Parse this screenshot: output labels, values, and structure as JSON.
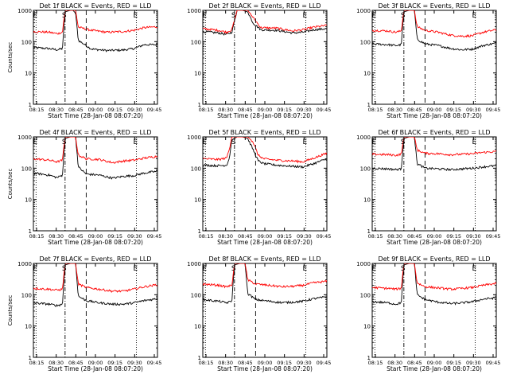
{
  "colors": {
    "events": "#000000",
    "lld": "#ff0000",
    "axes": "#000000",
    "background": "#ffffff"
  },
  "chart_data": [
    {
      "type": "line",
      "title": "Det 1f BLACK = Events, RED = LLD",
      "xlabel": "Start Time (28-Jan-08 08:07:20)",
      "ylabel": "Counts/sec",
      "x_tick_labels": [
        "08:15",
        "08:30",
        "08:45",
        "09:00",
        "09:15",
        "09:30",
        "09:45"
      ],
      "x_range_min": [
        8,
        55
      ],
      "y_log": true,
      "ylim": [
        1,
        1000
      ],
      "y_tick_labels": [
        "1",
        "10",
        "100",
        "1000"
      ],
      "markers": [
        {
          "label": "E",
          "style": "dotted",
          "x_min": 9
        },
        {
          "label": "S",
          "style": "dash-dot",
          "x_min": 20
        },
        {
          "label": "",
          "style": "dashed",
          "x_min": 28
        },
        {
          "label": "E",
          "style": "dotted",
          "x_min": 47
        }
      ],
      "series": [
        {
          "role": "events",
          "anchors_x_min": [
            8,
            14,
            17,
            19,
            20,
            22,
            23,
            24,
            25,
            30,
            36,
            42,
            46,
            50,
            55
          ],
          "anchors_y": [
            65,
            60,
            55,
            60,
            900,
            1000,
            1000,
            800,
            110,
            58,
            52,
            54,
            60,
            80,
            80
          ]
        },
        {
          "role": "lld",
          "anchors_x_min": [
            8,
            14,
            17,
            19,
            20,
            22,
            23,
            24,
            25,
            30,
            36,
            42,
            46,
            50,
            55
          ],
          "anchors_y": [
            210,
            200,
            180,
            200,
            1000,
            1000,
            1000,
            1000,
            290,
            230,
            200,
            210,
            230,
            280,
            300
          ]
        }
      ]
    },
    {
      "type": "line",
      "title": "Det 2f BLACK = Events, RED = LLD",
      "xlabel": "Start Time (28-Jan-08 08:07:20)",
      "ylabel": "",
      "x_tick_labels": [
        "08:15",
        "08:30",
        "08:45",
        "09:00",
        "09:15",
        "09:30",
        "09:45"
      ],
      "x_range_min": [
        8,
        55
      ],
      "y_log": true,
      "ylim": [
        1,
        1000
      ],
      "y_tick_labels": [
        "1",
        "10",
        "100",
        "1000"
      ],
      "markers": [
        {
          "label": "E",
          "style": "dotted",
          "x_min": 9
        },
        {
          "label": "S",
          "style": "dash-dot",
          "x_min": 20
        },
        {
          "label": "",
          "style": "dashed",
          "x_min": 28
        },
        {
          "label": "E",
          "style": "dotted",
          "x_min": 47
        }
      ],
      "series": [
        {
          "role": "events",
          "anchors_x_min": [
            8,
            14,
            17,
            19,
            21,
            23,
            25,
            27,
            30,
            36,
            42,
            46,
            50,
            55
          ],
          "anchors_y": [
            210,
            190,
            170,
            200,
            1000,
            1000,
            900,
            400,
            240,
            230,
            190,
            200,
            240,
            260
          ]
        },
        {
          "role": "lld",
          "anchors_x_min": [
            8,
            14,
            17,
            19,
            21,
            23,
            25,
            27,
            30,
            36,
            42,
            46,
            50,
            55
          ],
          "anchors_y": [
            260,
            230,
            200,
            240,
            1000,
            1000,
            1000,
            600,
            280,
            270,
            220,
            240,
            290,
            330
          ]
        }
      ]
    },
    {
      "type": "line",
      "title": "Det 3f BLACK = Events, RED = LLD",
      "xlabel": "Start Time (28-Jan-08 08:07:20)",
      "ylabel": "",
      "x_tick_labels": [
        "08:15",
        "08:30",
        "08:45",
        "09:00",
        "09:15",
        "09:30",
        "09:45"
      ],
      "x_range_min": [
        8,
        55
      ],
      "y_log": true,
      "ylim": [
        1,
        1000
      ],
      "y_tick_labels": [
        "1",
        "10",
        "100",
        "1000"
      ],
      "markers": [
        {
          "label": "E",
          "style": "dotted",
          "x_min": 9
        },
        {
          "label": "S",
          "style": "dash-dot",
          "x_min": 20
        },
        {
          "label": "",
          "style": "dashed",
          "x_min": 28
        },
        {
          "label": "E",
          "style": "dotted",
          "x_min": 47
        }
      ],
      "series": [
        {
          "role": "events",
          "anchors_x_min": [
            8,
            14,
            17,
            19,
            20,
            22,
            24,
            25,
            28,
            33,
            38,
            42,
            46,
            50,
            55
          ],
          "anchors_y": [
            85,
            80,
            75,
            80,
            900,
            1000,
            1000,
            120,
            85,
            75,
            60,
            55,
            58,
            75,
            90
          ]
        },
        {
          "role": "lld",
          "anchors_x_min": [
            8,
            14,
            17,
            19,
            20,
            22,
            24,
            25,
            28,
            33,
            38,
            42,
            46,
            50,
            55
          ],
          "anchors_y": [
            230,
            220,
            200,
            220,
            1000,
            1000,
            1000,
            300,
            230,
            200,
            160,
            150,
            155,
            200,
            240
          ]
        }
      ]
    },
    {
      "type": "line",
      "title": "Det 4f BLACK = Events, RED = LLD",
      "xlabel": "Start Time (28-Jan-08 08:07:20)",
      "ylabel": "Counts/sec",
      "x_tick_labels": [
        "08:15",
        "08:30",
        "08:45",
        "09:00",
        "09:15",
        "09:30",
        "09:45"
      ],
      "x_range_min": [
        8,
        55
      ],
      "y_log": true,
      "ylim": [
        1,
        1000
      ],
      "y_tick_labels": [
        "1",
        "10",
        "100",
        "1000"
      ],
      "markers": [
        {
          "label": "E",
          "style": "dotted",
          "x_min": 9
        },
        {
          "label": "S",
          "style": "dash-dot",
          "x_min": 20
        },
        {
          "label": "",
          "style": "dashed",
          "x_min": 28
        },
        {
          "label": "E",
          "style": "dotted",
          "x_min": 47
        }
      ],
      "series": [
        {
          "role": "events",
          "anchors_x_min": [
            8,
            14,
            17,
            19,
            20,
            22,
            24,
            25,
            28,
            33,
            38,
            42,
            46,
            50,
            55
          ],
          "anchors_y": [
            70,
            60,
            50,
            60,
            900,
            1000,
            1000,
            110,
            65,
            60,
            48,
            55,
            58,
            70,
            80
          ]
        },
        {
          "role": "lld",
          "anchors_x_min": [
            8,
            14,
            17,
            19,
            20,
            22,
            24,
            25,
            28,
            33,
            38,
            42,
            46,
            50,
            55
          ],
          "anchors_y": [
            200,
            180,
            160,
            180,
            1000,
            1000,
            1000,
            260,
            200,
            190,
            150,
            170,
            180,
            210,
            240
          ]
        }
      ]
    },
    {
      "type": "line",
      "title": "Det 5f BLACK = Events, RED = LLD",
      "xlabel": "Start Time (28-Jan-08 08:07:20)",
      "ylabel": "",
      "x_tick_labels": [
        "08:15",
        "08:30",
        "08:45",
        "09:00",
        "09:15",
        "09:30",
        "09:45"
      ],
      "x_range_min": [
        8,
        55
      ],
      "y_log": true,
      "ylim": [
        1,
        1000
      ],
      "y_tick_labels": [
        "1",
        "10",
        "100",
        "1000"
      ],
      "markers": [
        {
          "label": "E",
          "style": "dotted",
          "x_min": 9
        },
        {
          "label": "S",
          "style": "dash-dot",
          "x_min": 20
        },
        {
          "label": "",
          "style": "dashed",
          "x_min": 28
        },
        {
          "label": "E",
          "style": "dotted",
          "x_min": 47
        }
      ],
      "series": [
        {
          "role": "events",
          "anchors_x_min": [
            8,
            14,
            17,
            18,
            19,
            21,
            23,
            25,
            27,
            29,
            31,
            36,
            42,
            46,
            50,
            55
          ],
          "anchors_y": [
            125,
            120,
            125,
            200,
            800,
            1000,
            1000,
            900,
            400,
            170,
            140,
            125,
            115,
            110,
            140,
            200
          ]
        },
        {
          "role": "lld",
          "anchors_x_min": [
            8,
            14,
            17,
            18,
            19,
            21,
            23,
            25,
            27,
            29,
            31,
            36,
            42,
            46,
            50,
            55
          ],
          "anchors_y": [
            200,
            190,
            210,
            400,
            1000,
            1000,
            1000,
            1000,
            700,
            260,
            200,
            180,
            170,
            160,
            210,
            300
          ]
        }
      ]
    },
    {
      "type": "line",
      "title": "Det 6f BLACK = Events, RED = LLD",
      "xlabel": "Start Time (28-Jan-08 08:07:20)",
      "ylabel": "",
      "x_tick_labels": [
        "08:15",
        "08:30",
        "08:45",
        "09:00",
        "09:15",
        "09:30",
        "09:45"
      ],
      "x_range_min": [
        8,
        55
      ],
      "y_log": true,
      "ylim": [
        1,
        1000
      ],
      "y_tick_labels": [
        "1",
        "10",
        "100",
        "1000"
      ],
      "markers": [
        {
          "label": "E",
          "style": "dotted",
          "x_min": 9
        },
        {
          "label": "S",
          "style": "dash-dot",
          "x_min": 20
        },
        {
          "label": "",
          "style": "dashed",
          "x_min": 28
        },
        {
          "label": "E",
          "style": "dotted",
          "x_min": 47
        }
      ],
      "series": [
        {
          "role": "events",
          "anchors_x_min": [
            8,
            14,
            17,
            19,
            20,
            22,
            24,
            25,
            28,
            33,
            38,
            42,
            46,
            50,
            55
          ],
          "anchors_y": [
            100,
            95,
            90,
            95,
            900,
            1000,
            1000,
            140,
            100,
            95,
            90,
            95,
            100,
            110,
            120
          ]
        },
        {
          "role": "lld",
          "anchors_x_min": [
            8,
            14,
            17,
            19,
            20,
            22,
            24,
            25,
            28,
            33,
            38,
            42,
            46,
            50,
            55
          ],
          "anchors_y": [
            280,
            270,
            260,
            280,
            1000,
            1000,
            1000,
            380,
            300,
            290,
            270,
            280,
            290,
            320,
            340
          ]
        }
      ]
    },
    {
      "type": "line",
      "title": "Det 7f BLACK = Events, RED = LLD",
      "xlabel": "Start Time (28-Jan-08 08:07:20)",
      "ylabel": "Counts/sec",
      "x_tick_labels": [
        "08:15",
        "08:30",
        "08:45",
        "09:00",
        "09:15",
        "09:30",
        "09:45"
      ],
      "x_range_min": [
        8,
        55
      ],
      "y_log": true,
      "ylim": [
        1,
        1000
      ],
      "y_tick_labels": [
        "1",
        "10",
        "100",
        "1000"
      ],
      "markers": [
        {
          "label": "E",
          "style": "dotted",
          "x_min": 9
        },
        {
          "label": "S",
          "style": "dash-dot",
          "x_min": 20
        },
        {
          "label": "",
          "style": "dashed",
          "x_min": 28
        },
        {
          "label": "E",
          "style": "dotted",
          "x_min": 47
        }
      ],
      "series": [
        {
          "role": "events",
          "anchors_x_min": [
            8,
            14,
            17,
            19,
            20,
            22,
            24,
            25,
            28,
            33,
            38,
            42,
            46,
            50,
            55
          ],
          "anchors_y": [
            55,
            50,
            45,
            50,
            900,
            1000,
            1000,
            90,
            65,
            55,
            50,
            50,
            55,
            65,
            75
          ]
        },
        {
          "role": "lld",
          "anchors_x_min": [
            8,
            14,
            17,
            19,
            20,
            22,
            24,
            25,
            28,
            33,
            38,
            42,
            46,
            50,
            55
          ],
          "anchors_y": [
            160,
            150,
            140,
            150,
            1000,
            1000,
            1000,
            220,
            170,
            150,
            130,
            130,
            150,
            180,
            210
          ]
        }
      ]
    },
    {
      "type": "line",
      "title": "Det 8f BLACK = Events, RED = LLD",
      "xlabel": "Start Time (28-Jan-08 08:07:20)",
      "ylabel": "",
      "x_tick_labels": [
        "08:15",
        "08:30",
        "08:45",
        "09:00",
        "09:15",
        "09:30",
        "09:45"
      ],
      "x_range_min": [
        8,
        55
      ],
      "y_log": true,
      "ylim": [
        1,
        1000
      ],
      "y_tick_labels": [
        "1",
        "10",
        "100",
        "1000"
      ],
      "markers": [
        {
          "label": "E",
          "style": "dotted",
          "x_min": 9
        },
        {
          "label": "S",
          "style": "dash-dot",
          "x_min": 20
        },
        {
          "label": "",
          "style": "dashed",
          "x_min": 28
        },
        {
          "label": "E",
          "style": "dotted",
          "x_min": 47
        }
      ],
      "series": [
        {
          "role": "events",
          "anchors_x_min": [
            8,
            14,
            17,
            19,
            20,
            22,
            24,
            25,
            28,
            33,
            38,
            42,
            46,
            50,
            55
          ],
          "anchors_y": [
            70,
            62,
            55,
            62,
            900,
            1000,
            1000,
            110,
            70,
            62,
            56,
            58,
            62,
            75,
            85
          ]
        },
        {
          "role": "lld",
          "anchors_x_min": [
            8,
            14,
            17,
            19,
            20,
            22,
            24,
            25,
            28,
            33,
            38,
            42,
            46,
            50,
            55
          ],
          "anchors_y": [
            220,
            200,
            180,
            200,
            1000,
            1000,
            1000,
            300,
            220,
            200,
            180,
            185,
            200,
            240,
            270
          ]
        }
      ]
    },
    {
      "type": "line",
      "title": "Det 9f BLACK = Events, RED = LLD",
      "xlabel": "Start Time (28-Jan-08 08:07:20)",
      "ylabel": "",
      "x_tick_labels": [
        "08:15",
        "08:30",
        "08:45",
        "09:00",
        "09:15",
        "09:30",
        "09:45"
      ],
      "x_range_min": [
        8,
        55
      ],
      "y_log": true,
      "ylim": [
        1,
        1000
      ],
      "y_tick_labels": [
        "1",
        "10",
        "100",
        "1000"
      ],
      "markers": [
        {
          "label": "E",
          "style": "dotted",
          "x_min": 9
        },
        {
          "label": "S",
          "style": "dash-dot",
          "x_min": 20
        },
        {
          "label": "",
          "style": "dashed",
          "x_min": 28
        },
        {
          "label": "E",
          "style": "dotted",
          "x_min": 47
        }
      ],
      "series": [
        {
          "role": "events",
          "anchors_x_min": [
            8,
            14,
            17,
            19,
            20,
            22,
            24,
            25,
            28,
            33,
            38,
            42,
            46,
            50,
            55
          ],
          "anchors_y": [
            60,
            55,
            50,
            55,
            900,
            1000,
            1000,
            100,
            70,
            58,
            52,
            55,
            60,
            72,
            80
          ]
        },
        {
          "role": "lld",
          "anchors_x_min": [
            8,
            14,
            17,
            19,
            20,
            22,
            24,
            25,
            28,
            33,
            38,
            42,
            46,
            50,
            55
          ],
          "anchors_y": [
            170,
            160,
            150,
            160,
            1000,
            1000,
            1000,
            240,
            180,
            165,
            150,
            160,
            170,
            200,
            230
          ]
        }
      ]
    }
  ]
}
